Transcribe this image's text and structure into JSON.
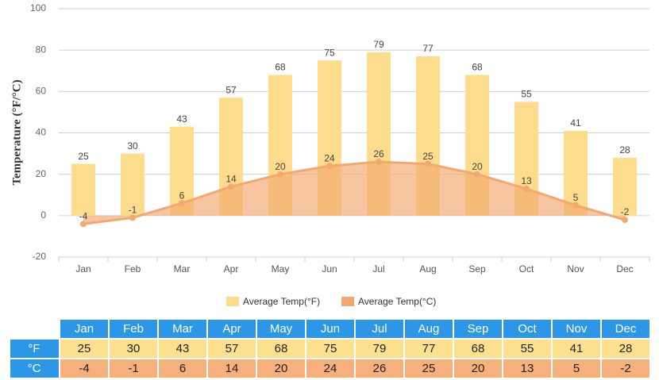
{
  "chart_data": {
    "type": "bar",
    "y_label": "Temperature (°F/°C)",
    "categories": [
      "Jan",
      "Feb",
      "Mar",
      "Apr",
      "May",
      "Jun",
      "Jul",
      "Aug",
      "Sep",
      "Oct",
      "Nov",
      "Dec"
    ],
    "series": [
      {
        "name": "Average Temp(°F)",
        "type": "bar",
        "color": "#fddc8e",
        "values": [
          25,
          30,
          43,
          57,
          68,
          75,
          79,
          77,
          68,
          55,
          41,
          28
        ]
      },
      {
        "name": "Average Temp(°C)",
        "type": "area",
        "color": "#f2a86f",
        "values": [
          -4,
          -1,
          6,
          14,
          20,
          24,
          26,
          25,
          20,
          13,
          5,
          -2
        ]
      }
    ],
    "ylim": [
      -20,
      100
    ],
    "yticks": [
      -20,
      0,
      20,
      40,
      60,
      80,
      100
    ],
    "grid": true
  },
  "table": {
    "row_labels": [
      "°F",
      "°C"
    ],
    "header_color": "#2b97e6",
    "row_colors": [
      "#fde08f",
      "#f5b07c"
    ]
  }
}
